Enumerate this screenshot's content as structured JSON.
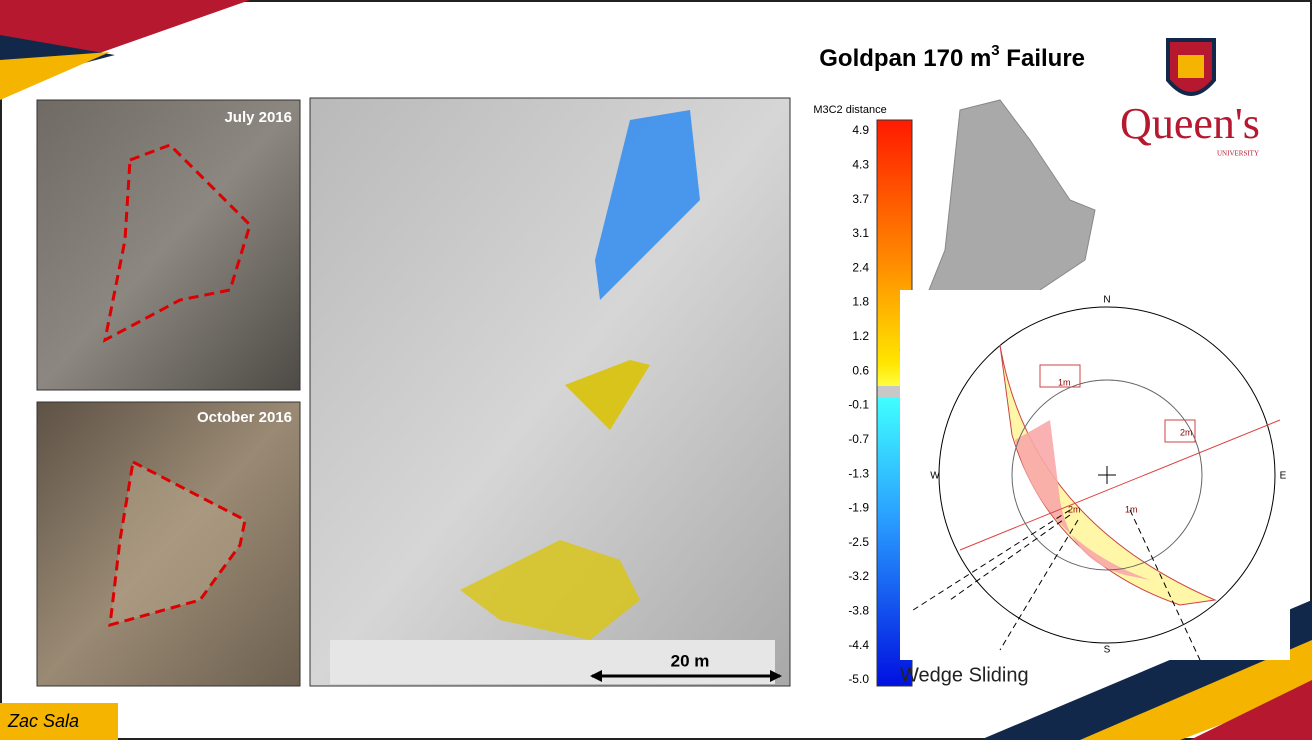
{
  "title": {
    "text": "Goldpan 170 m",
    "superscript": "3",
    "suffix": " Failure"
  },
  "photos": [
    {
      "label": "July 2016"
    },
    {
      "label": "October 2016"
    }
  ],
  "colorbar": {
    "title": "M3C2 distance",
    "ticks": [
      "4.9",
      "4.3",
      "3.7",
      "3.1",
      "2.4",
      "1.8",
      "1.2",
      "0.6",
      "-0.1",
      "-0.7",
      "-1.3",
      "-1.9",
      "-2.5",
      "-3.2",
      "-3.8",
      "-4.4",
      "-5.0"
    ]
  },
  "scale_bar": "20 m",
  "logo": {
    "name": "Queen's",
    "subtitle": "UNIVERSITY"
  },
  "stereonet": {
    "north": "N",
    "south": "S",
    "east": "E",
    "west": "W",
    "labels": [
      "1m",
      "2m",
      "2m",
      "1m"
    ],
    "caption": "Wedge Sliding"
  },
  "author": "Zac Sala"
}
